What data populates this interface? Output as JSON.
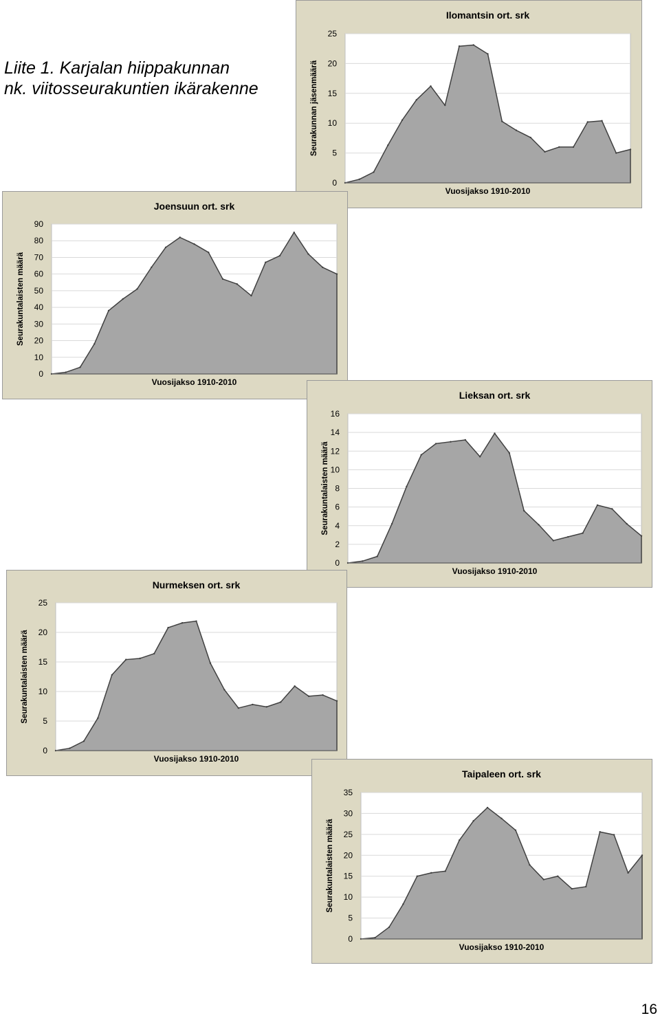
{
  "document": {
    "title_line1": "Liite 1. Karjalan hiippakunnan",
    "title_line2": "nk. viitosseurakuntien ikärakenne",
    "page_number": "16"
  },
  "colors": {
    "panel_background": "#ddd9c3",
    "panel_border": "#9a9a9a",
    "plot_background": "#ffffff",
    "gridline": "#d9d9d9",
    "area_fill": "#a6a6a6",
    "area_stroke": "#404040"
  },
  "chart_data": [
    {
      "type": "area",
      "title": "Ilomantsin ort. srk",
      "xlabel": "Vuosijakso 1910-2010",
      "ylabel": "Seurakunnan jäsenmäärä",
      "ylim": [
        0,
        25
      ],
      "yticks": [
        0,
        5,
        10,
        15,
        20,
        25
      ],
      "grid": true,
      "legend": "none",
      "values": [
        0,
        0.6,
        1.8,
        6.3,
        10.5,
        13.9,
        16.2,
        13.0,
        22.9,
        23.1,
        21.6,
        10.3,
        8.8,
        7.6,
        5.2,
        6.0,
        6.0,
        10.2,
        10.4,
        5.0,
        5.6
      ]
    },
    {
      "type": "area",
      "title": "Joensuun ort. srk",
      "xlabel": "Vuosijakso 1910-2010",
      "ylabel": "Seurakuntalaisten määrä",
      "ylim": [
        0,
        90
      ],
      "yticks": [
        0,
        10,
        20,
        30,
        40,
        50,
        60,
        70,
        80,
        90
      ],
      "grid": true,
      "legend": "none",
      "values": [
        0,
        1,
        4,
        18,
        38,
        45,
        51,
        64,
        76,
        82,
        78,
        73,
        57,
        54,
        47,
        67,
        71,
        85,
        72,
        64,
        60
      ]
    },
    {
      "type": "area",
      "title": "Lieksan ort. srk",
      "xlabel": "Vuosijakso 1910-2010",
      "ylabel": "Seurakuntalaisten määrä",
      "ylim": [
        0,
        16
      ],
      "yticks": [
        0,
        2,
        4,
        6,
        8,
        10,
        12,
        14,
        16
      ],
      "grid": true,
      "legend": "none",
      "values": [
        0,
        0.2,
        0.7,
        4.2,
        8.2,
        11.6,
        12.8,
        13.0,
        13.2,
        11.4,
        13.9,
        11.8,
        5.6,
        4.1,
        2.4,
        2.8,
        3.2,
        6.2,
        5.8,
        4.2,
        2.9
      ]
    },
    {
      "type": "area",
      "title": "Nurmeksen ort. srk",
      "xlabel": "Vuosijakso 1910-2010",
      "ylabel": "Seurakuntalaisten määrä",
      "ylim": [
        0,
        25
      ],
      "yticks": [
        0,
        5,
        10,
        15,
        20,
        25
      ],
      "grid": true,
      "legend": "none",
      "values": [
        0,
        0.4,
        1.6,
        5.5,
        12.8,
        15.4,
        15.6,
        16.4,
        20.8,
        21.6,
        21.9,
        14.8,
        10.3,
        7.2,
        7.8,
        7.4,
        8.2,
        10.9,
        9.2,
        9.4,
        8.4
      ]
    },
    {
      "type": "area",
      "title": "Taipaleen ort. srk",
      "xlabel": "Vuosijakso 1910-2010",
      "ylabel": "Seurakuntalaisten määrä",
      "ylim": [
        0,
        35
      ],
      "yticks": [
        0,
        5,
        10,
        15,
        20,
        25,
        30,
        35
      ],
      "grid": true,
      "legend": "none",
      "values": [
        0,
        0.3,
        2.8,
        8.3,
        15.0,
        15.8,
        16.2,
        23.6,
        28.2,
        31.4,
        28.8,
        26.0,
        17.7,
        14.2,
        15.0,
        12.0,
        12.5,
        25.6,
        24.9,
        15.8,
        20.0
      ]
    }
  ]
}
